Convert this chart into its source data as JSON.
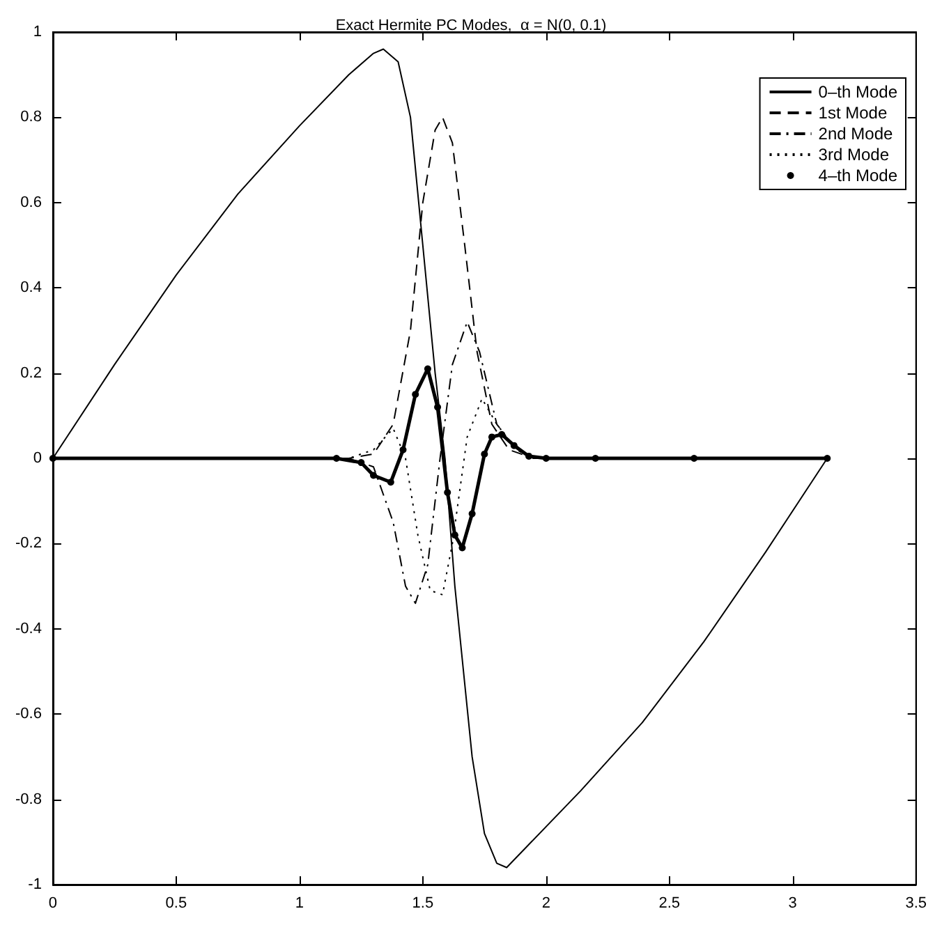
{
  "chart_data": {
    "type": "line",
    "title": "Exact Hermite PC Modes,  α = N(0, 0.1)",
    "xlim": [
      0,
      3.5
    ],
    "xticks": [
      0,
      0.5,
      1,
      1.5,
      2,
      2.5,
      3,
      3.5
    ],
    "ylim": [
      -1,
      1
    ],
    "yticks": [
      -1,
      -0.8,
      -0.6,
      -0.4,
      -0.2,
      0,
      0.2,
      0.4,
      0.6,
      0.8,
      1
    ],
    "grid": false,
    "legend": "top right",
    "series": [
      {
        "name": "0–th Mode",
        "color": "#000000",
        "line_style": "solid",
        "marker": "none",
        "x": [
          0,
          0.25,
          0.5,
          0.75,
          1.0,
          1.2,
          1.3,
          1.34,
          1.4,
          1.45,
          1.5,
          1.55,
          1.59,
          1.63,
          1.7,
          1.75,
          1.8,
          1.84,
          1.94,
          2.14,
          2.39,
          2.64,
          2.89,
          3.14
        ],
        "values": [
          0,
          0.22,
          0.43,
          0.62,
          0.78,
          0.9,
          0.95,
          0.96,
          0.93,
          0.8,
          0.5,
          0.2,
          0,
          -0.3,
          -0.7,
          -0.88,
          -0.95,
          -0.96,
          -0.9,
          -0.78,
          -0.62,
          -0.43,
          -0.22,
          0
        ]
      },
      {
        "name": "1st Mode",
        "color": "#000000",
        "line_style": "dashed",
        "marker": "none",
        "x": [
          0,
          1.2,
          1.3,
          1.38,
          1.45,
          1.5,
          1.55,
          1.58,
          1.62,
          1.67,
          1.72,
          1.78,
          1.85,
          1.95,
          2.1,
          3.14
        ],
        "values": [
          0,
          0,
          0.01,
          0.08,
          0.3,
          0.6,
          0.77,
          0.8,
          0.74,
          0.5,
          0.25,
          0.08,
          0.02,
          0,
          0,
          0
        ]
      },
      {
        "name": "2nd Mode",
        "color": "#000000",
        "line_style": "dashdot",
        "marker": "none",
        "x": [
          0,
          1.2,
          1.3,
          1.38,
          1.43,
          1.47,
          1.52,
          1.57,
          1.62,
          1.68,
          1.73,
          1.8,
          1.88,
          1.95,
          2.1,
          3.14
        ],
        "values": [
          0,
          0,
          -0.02,
          -0.15,
          -0.3,
          -0.34,
          -0.25,
          0,
          0.22,
          0.32,
          0.25,
          0.08,
          0.02,
          0,
          0,
          0
        ]
      },
      {
        "name": "3rd Mode",
        "color": "#000000",
        "line_style": "dotted",
        "marker": "none",
        "x": [
          0,
          1.2,
          1.3,
          1.38,
          1.43,
          1.48,
          1.53,
          1.58,
          1.62,
          1.68,
          1.74,
          1.8,
          1.88,
          1.95,
          2.1,
          3.14
        ],
        "values": [
          0,
          0,
          0.02,
          0.07,
          0,
          -0.18,
          -0.31,
          -0.32,
          -0.2,
          0.05,
          0.14,
          0.08,
          0.02,
          0,
          0,
          0
        ]
      },
      {
        "name": "4–th Mode",
        "color": "#000000",
        "line_style": "solid",
        "marker": "circle",
        "x": [
          0,
          1.15,
          1.25,
          1.3,
          1.37,
          1.42,
          1.47,
          1.52,
          1.56,
          1.6,
          1.63,
          1.66,
          1.7,
          1.75,
          1.78,
          1.82,
          1.87,
          1.93,
          2.0,
          2.2,
          2.6,
          3.14
        ],
        "values": [
          0,
          0,
          -0.01,
          -0.04,
          -0.056,
          0.02,
          0.15,
          0.21,
          0.12,
          -0.08,
          -0.18,
          -0.21,
          -0.13,
          0.01,
          0.05,
          0.056,
          0.03,
          0.005,
          0,
          0,
          0,
          0
        ]
      }
    ]
  }
}
